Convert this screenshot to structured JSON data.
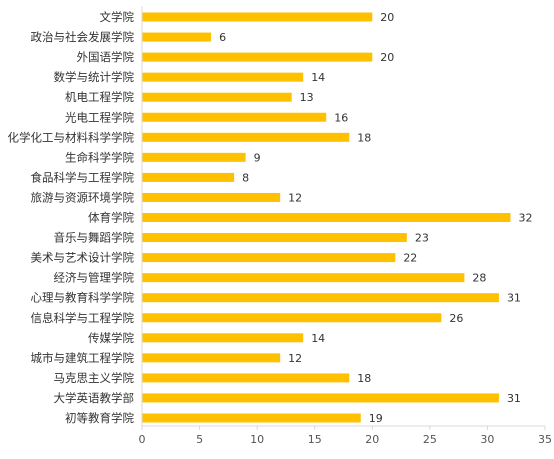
{
  "chart_data": {
    "type": "bar",
    "orientation": "horizontal",
    "categories": [
      "文学院",
      "政治与社会发展学院",
      "外国语学院",
      "数学与统计学院",
      "机电工程学院",
      "光电工程学院",
      "化学化工与材料科学学院",
      "生命科学学院",
      "食品科学与工程学院",
      "旅游与资源环境学院",
      "体育学院",
      "音乐与舞蹈学院",
      "美术与艺术设计学院",
      "经济与管理学院",
      "心理与教育科学学院",
      "信息科学与工程学院",
      "传媒学院",
      "城市与建筑工程学院",
      "马克思主义学院",
      "大学英语教学部",
      "初等教育学院"
    ],
    "values": [
      20,
      6,
      20,
      14,
      13,
      16,
      18,
      9,
      8,
      12,
      32,
      23,
      22,
      28,
      31,
      26,
      14,
      12,
      18,
      31,
      19
    ],
    "xlim": [
      0,
      35
    ],
    "xticks": [
      0,
      5,
      10,
      15,
      20,
      25,
      30,
      35
    ],
    "bar_color": "#FFC000",
    "axis_color": "#D9D9D9",
    "grid": false,
    "data_labels": true,
    "legend": "none"
  }
}
